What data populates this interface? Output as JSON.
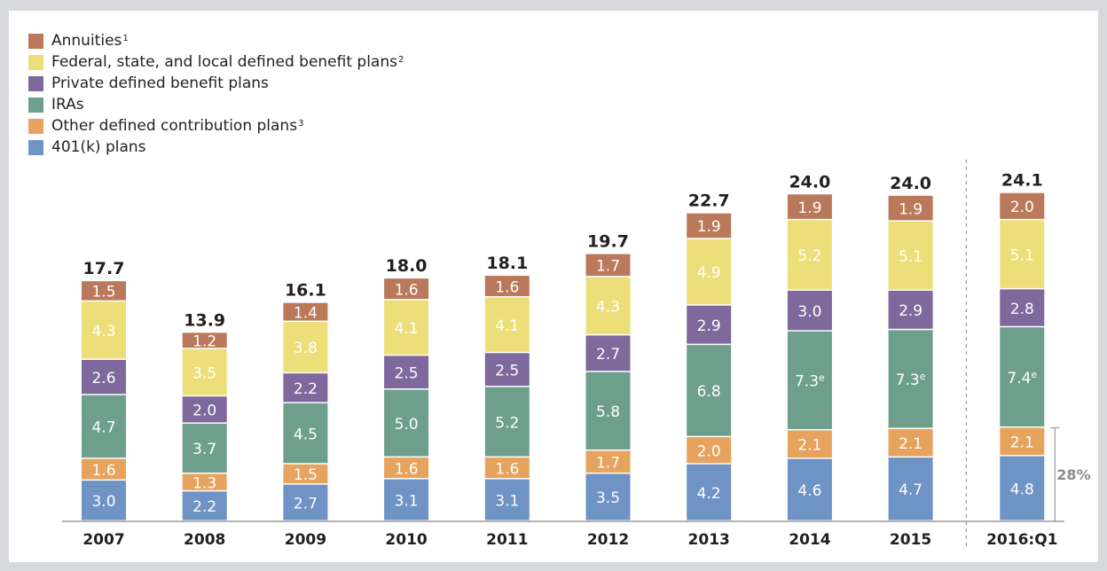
{
  "chart_data": {
    "type": "bar",
    "stacked": true,
    "categories": [
      "2007",
      "2008",
      "2009",
      "2010",
      "2011",
      "2012",
      "2013",
      "2014",
      "2015",
      "2016:Q1"
    ],
    "totals": [
      "17.7",
      "13.9",
      "16.1",
      "18.0",
      "18.1",
      "19.7",
      "22.7",
      "24.0",
      "24.0",
      "24.1"
    ],
    "series": [
      {
        "name": "401(k) plans",
        "color": "#6e93c4",
        "values": [
          3.0,
          2.2,
          2.7,
          3.1,
          3.1,
          3.5,
          4.2,
          4.6,
          4.7,
          4.8
        ]
      },
      {
        "name": "Other defined contribution plans",
        "sup": "3",
        "color": "#e6a35e",
        "values": [
          1.6,
          1.3,
          1.5,
          1.6,
          1.6,
          1.7,
          2.0,
          2.1,
          2.1,
          2.1
        ]
      },
      {
        "name": "IRAs",
        "color": "#6e9f8c",
        "values": [
          4.7,
          3.7,
          4.5,
          5.0,
          5.2,
          5.8,
          6.8,
          7.3,
          7.3,
          7.4
        ],
        "label_suffix": [
          "",
          "",
          "",
          "",
          "",
          "",
          "",
          "e",
          "e",
          "e"
        ]
      },
      {
        "name": "Private defined benefit plans",
        "color": "#7e689c",
        "values": [
          2.6,
          2.0,
          2.2,
          2.5,
          2.5,
          2.7,
          2.9,
          3.0,
          2.9,
          2.8
        ]
      },
      {
        "name": "Federal, state, and local defined benefit plans",
        "sup": "2",
        "color": "#ecdf7a",
        "values": [
          4.3,
          3.5,
          3.8,
          4.1,
          4.1,
          4.3,
          4.9,
          5.2,
          5.1,
          5.1
        ]
      },
      {
        "name": "Annuities",
        "sup": "1",
        "color": "#b9795a",
        "values": [
          1.5,
          1.2,
          1.4,
          1.6,
          1.6,
          1.7,
          1.9,
          1.9,
          1.9,
          2.0
        ]
      }
    ],
    "annotation": {
      "text": "28%",
      "color": "#8a8c8e"
    },
    "ylim": [
      0,
      26
    ],
    "grid": false,
    "legend_position": "top-left"
  }
}
